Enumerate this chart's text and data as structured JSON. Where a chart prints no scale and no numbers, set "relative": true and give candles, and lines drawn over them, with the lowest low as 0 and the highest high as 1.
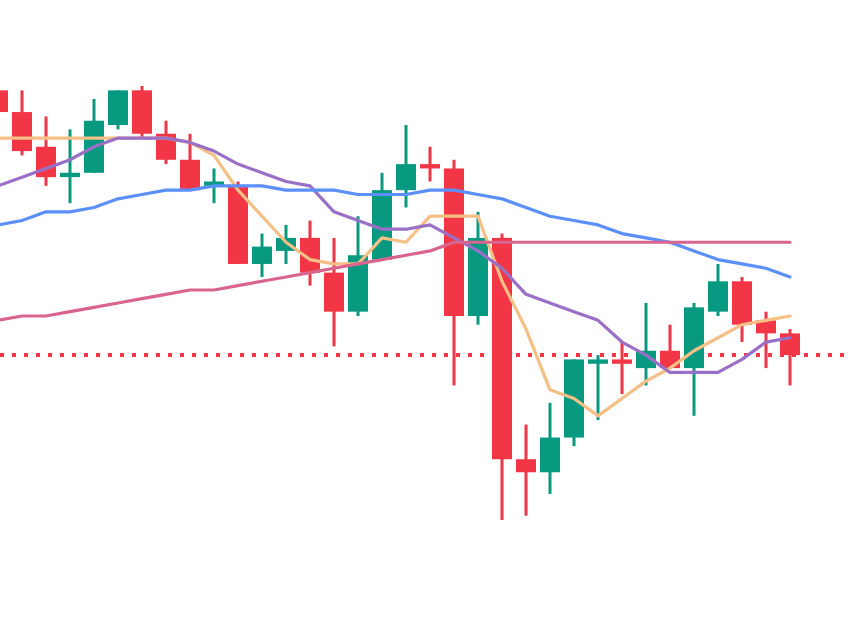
{
  "chart_data": {
    "type": "candlestick",
    "relative": true,
    "categories": [
      null,
      null,
      null,
      null,
      null,
      null,
      null,
      null,
      null,
      null,
      null,
      null,
      null,
      null,
      null,
      null,
      null,
      null,
      null,
      null,
      null,
      null,
      null,
      null,
      null,
      null,
      null,
      null,
      null,
      null,
      null,
      null,
      null,
      null
    ],
    "ohlc": [
      [
        0.99,
        0.99,
        0.94,
        0.94
      ],
      [
        0.94,
        0.99,
        0.84,
        0.85
      ],
      [
        0.86,
        0.93,
        0.77,
        0.79
      ],
      [
        0.79,
        0.9,
        0.73,
        0.8
      ],
      [
        0.8,
        0.97,
        0.8,
        0.92
      ],
      [
        0.91,
        0.99,
        0.9,
        0.99
      ],
      [
        0.99,
        1,
        0.88,
        0.89
      ],
      [
        0.89,
        0.92,
        0.82,
        0.83
      ],
      [
        0.83,
        0.89,
        0.76,
        0.76
      ],
      [
        0.77,
        0.81,
        0.73,
        0.78
      ],
      [
        0.77,
        0.78,
        0.59,
        0.59
      ],
      [
        0.59,
        0.66,
        0.56,
        0.63
      ],
      [
        0.62,
        0.68,
        0.59,
        0.65
      ],
      [
        0.65,
        0.69,
        0.54,
        0.57
      ],
      [
        0.57,
        0.65,
        0.4,
        0.48
      ],
      [
        0.48,
        0.7,
        0.47,
        0.61
      ],
      [
        0.6,
        0.8,
        0.6,
        0.76
      ],
      [
        0.76,
        0.91,
        0.72,
        0.82
      ],
      [
        0.82,
        0.86,
        0.78,
        0.81
      ],
      [
        0.81,
        0.83,
        0.31,
        0.47
      ],
      [
        0.47,
        0.71,
        0.45,
        0.65
      ],
      [
        0.65,
        0.66,
        0,
        0.14
      ],
      [
        0.14,
        0.22,
        0.01,
        0.11
      ],
      [
        0.11,
        0.27,
        0.06,
        0.19
      ],
      [
        0.19,
        0.37,
        0.17,
        0.37
      ],
      [
        0.36,
        0.38,
        0.23,
        0.37
      ],
      [
        0.37,
        0.41,
        0.29,
        0.36
      ],
      [
        0.35,
        0.5,
        0.31,
        0.39
      ],
      [
        0.39,
        0.45,
        0.35,
        0.35
      ],
      [
        0.35,
        0.5,
        0.24,
        0.49
      ],
      [
        0.48,
        0.59,
        0.47,
        0.55
      ],
      [
        0.55,
        0.56,
        0.41,
        0.45
      ],
      [
        0.46,
        0.48,
        0.35,
        0.43
      ],
      [
        0.43,
        0.44,
        0.31,
        0.38
      ]
    ],
    "colors": [
      "#f23645",
      "#f23645",
      "#f23645",
      "#089981",
      "#089981",
      "#089981",
      "#f23645",
      "#f23645",
      "#f23645",
      "#089981",
      "#f23645",
      "#089981",
      "#089981",
      "#f23645",
      "#f23645",
      "#089981",
      "#089981",
      "#089981",
      "#f23645",
      "#f23645",
      "#089981",
      "#f23645",
      "#f23645",
      "#089981",
      "#089981",
      "#089981",
      "#f23645",
      "#089981",
      "#f23645",
      "#089981",
      "#089981",
      "#f23645",
      "#f23645",
      "#f23645"
    ],
    "series": [
      {
        "type": "line",
        "color": "#f5bf86",
        "values": [
          0.88,
          0.88,
          0.88,
          0.88,
          0.88,
          0.88,
          0.88,
          0.88,
          0.87,
          0.84,
          0.76,
          0.7,
          0.64,
          0.6,
          0.59,
          0.59,
          0.65,
          0.64,
          0.7,
          0.7,
          0.7,
          0.55,
          0.44,
          0.3,
          0.28,
          0.24,
          0.28,
          0.32,
          0.35,
          0.39,
          0.42,
          0.45,
          0.46,
          0.47
        ]
      },
      {
        "type": "line",
        "color": "#9a6fc6",
        "values": [
          0.77,
          0.79,
          0.81,
          0.83,
          0.86,
          0.88,
          0.88,
          0.88,
          0.87,
          0.85,
          0.82,
          0.8,
          0.78,
          0.77,
          0.71,
          0.69,
          0.67,
          0.67,
          0.68,
          0.65,
          0.62,
          0.58,
          0.52,
          0.5,
          0.48,
          0.46,
          0.41,
          0.38,
          0.34,
          0.34,
          0.34,
          0.37,
          0.41,
          0.42
        ]
      },
      {
        "type": "line",
        "color": "#5b8ff9",
        "values": [
          0.68,
          0.69,
          0.71,
          0.71,
          0.72,
          0.74,
          0.75,
          0.76,
          0.76,
          0.77,
          0.77,
          0.77,
          0.76,
          0.76,
          0.76,
          0.75,
          0.75,
          0.75,
          0.76,
          0.76,
          0.75,
          0.74,
          0.72,
          0.7,
          0.69,
          0.68,
          0.66,
          0.65,
          0.64,
          0.62,
          0.6,
          0.59,
          0.58,
          0.56
        ]
      },
      {
        "type": "line",
        "color": "#d9648e",
        "values": [
          0.46,
          0.47,
          0.47,
          0.48,
          0.49,
          0.5,
          0.51,
          0.52,
          0.53,
          0.53,
          0.54,
          0.55,
          0.56,
          0.57,
          0.58,
          0.59,
          0.6,
          0.61,
          0.62,
          0.64,
          0.64,
          0.64,
          0.64,
          0.64,
          0.64,
          0.64,
          0.64,
          0.64,
          0.64,
          0.64,
          0.64,
          0.64,
          0.64,
          0.64
        ]
      }
    ],
    "ref_lines": [
      {
        "axis": "y",
        "value": 0.38,
        "color": "#f23645",
        "line_style": "dotted"
      }
    ]
  }
}
